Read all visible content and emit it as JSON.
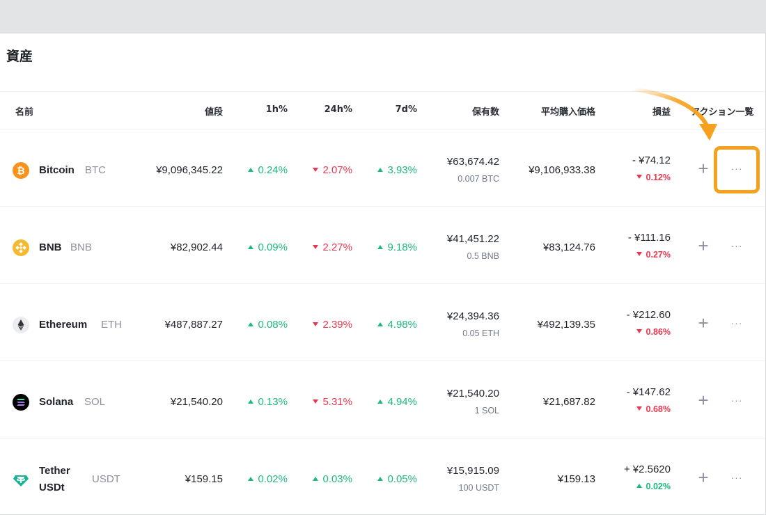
{
  "panel": {
    "title": "資産"
  },
  "header": {
    "name": "名前",
    "price": "値段",
    "h1": "1h%",
    "h24": "24h%",
    "d7": "7d%",
    "holdings": "保有数",
    "avg_buy": "平均購入価格",
    "pnl": "損益",
    "actions": "アクション一覧"
  },
  "rows": [
    {
      "name": "Bitcoin",
      "symbol": "BTC",
      "price": "¥9,096,345.22",
      "h1": "0.24%",
      "h1_dir": "up",
      "h24": "2.07%",
      "h24_dir": "down",
      "d7": "3.93%",
      "d7_dir": "up",
      "holdings_value": "¥63,674.42",
      "holdings_amount": "0.007 BTC",
      "avg_buy": "¥9,106,933.38",
      "pnl_value": "- ¥74.12",
      "pnl_pct": "0.12%",
      "pnl_dir": "down",
      "icon": "bitcoin-icon",
      "icon_color": "#f7931a"
    },
    {
      "name": "BNB",
      "symbol": "BNB",
      "price": "¥82,902.44",
      "h1": "0.09%",
      "h1_dir": "up",
      "h24": "2.27%",
      "h24_dir": "down",
      "d7": "9.18%",
      "d7_dir": "up",
      "holdings_value": "¥41,451.22",
      "holdings_amount": "0.5 BNB",
      "avg_buy": "¥83,124.76",
      "pnl_value": "- ¥111.16",
      "pnl_pct": "0.27%",
      "pnl_dir": "down",
      "icon": "bnb-icon",
      "icon_color": "#f3ba2f"
    },
    {
      "name": "Ethereum",
      "symbol": "ETH",
      "price": "¥487,887.27",
      "h1": "0.08%",
      "h1_dir": "up",
      "h24": "2.39%",
      "h24_dir": "down",
      "d7": "4.98%",
      "d7_dir": "up",
      "holdings_value": "¥24,394.36",
      "holdings_amount": "0.05 ETH",
      "avg_buy": "¥492,139.35",
      "pnl_value": "- ¥212.60",
      "pnl_pct": "0.86%",
      "pnl_dir": "down",
      "icon": "ethereum-icon",
      "icon_color": "#ecedf0"
    },
    {
      "name": "Solana",
      "symbol": "SOL",
      "price": "¥21,540.20",
      "h1": "0.13%",
      "h1_dir": "up",
      "h24": "5.31%",
      "h24_dir": "down",
      "d7": "4.94%",
      "d7_dir": "up",
      "holdings_value": "¥21,540.20",
      "holdings_amount": "1 SOL",
      "avg_buy": "¥21,687.82",
      "pnl_value": "- ¥147.62",
      "pnl_pct": "0.68%",
      "pnl_dir": "down",
      "icon": "solana-icon",
      "icon_color": "#000000"
    },
    {
      "name": "Tether USDt",
      "name_line1": "Tether",
      "name_line2": "USDt",
      "symbol": "USDT",
      "price": "¥159.15",
      "h1": "0.02%",
      "h1_dir": "up",
      "h24": "0.03%",
      "h24_dir": "up",
      "d7": "0.05%",
      "d7_dir": "up",
      "holdings_value": "¥15,915.09",
      "holdings_amount": "100 USDT",
      "avg_buy": "¥159.13",
      "pnl_value": "+ ¥2.5620",
      "pnl_pct": "0.02%",
      "pnl_dir": "up",
      "icon": "tether-icon",
      "icon_color": "#13b393"
    }
  ],
  "actions": {
    "add_symbol": "+",
    "more_symbol": "···"
  },
  "colors": {
    "up": "#1eb980",
    "down": "#e8384f",
    "highlight": "#f5a11e"
  }
}
